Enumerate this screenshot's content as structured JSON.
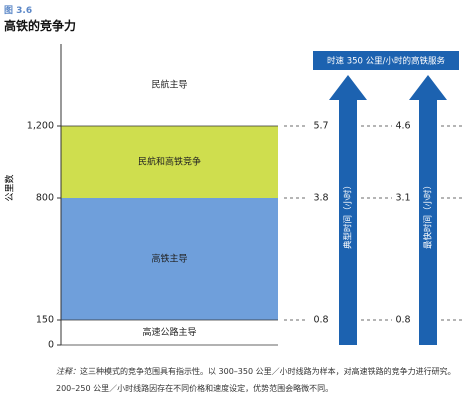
{
  "figure": {
    "label": "图 3.6",
    "title": "高铁的竞争力"
  },
  "colors": {
    "figure_label": "#5b87c7",
    "air_rail_zone": "#cfde4e",
    "rail_zone": "#6f9fdb",
    "arrow": "#1c62b0",
    "header_box": "#1c62b0",
    "header_text": "#ffffff",
    "dashed_line": "#6b6b6b"
  },
  "diagram": {
    "y_axis": {
      "label": "公里数",
      "ticks": [
        "0",
        "150",
        "800",
        "1,200"
      ],
      "max": 1200
    },
    "zones": [
      {
        "label": "高速公路主导",
        "from_km": 0,
        "to_km": 150,
        "filled": false
      },
      {
        "label": "高铁主导",
        "from_km": 150,
        "to_km": 800,
        "filled": true,
        "color_key": "rail_zone"
      },
      {
        "label": "民航和高铁竞争",
        "from_km": 800,
        "to_km": 1200,
        "filled": true,
        "color_key": "air_rail_zone"
      },
      {
        "label": "民航主导",
        "from_km": 1200,
        "to_km": null,
        "filled": false
      }
    ],
    "header": "时速 350 公里/小时的高铁服务",
    "time_columns": [
      {
        "arrow_label": "典型时间（小时）",
        "values": [
          "5.7",
          "3.8",
          "0.8"
        ]
      },
      {
        "arrow_label": "最快时间（小时）",
        "values": [
          "4.6",
          "3.1",
          "0.8"
        ]
      }
    ]
  },
  "note": {
    "prefix": "注释：",
    "text": "这三种模式的竞争范围具有指示性。以 300–350 公里／小时线路为样本，对高速铁路的竞争力进行研究。200–250 公里／小时线路因存在不同价格和速度设定，优势范围会略微不同。"
  }
}
